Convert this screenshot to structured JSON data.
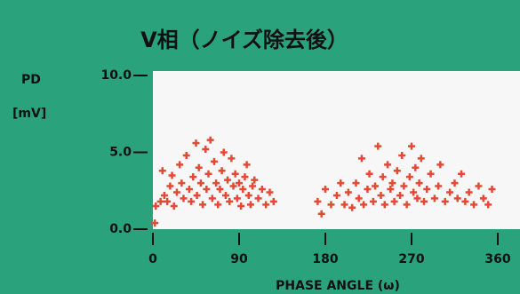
{
  "chart_data": {
    "type": "scatter",
    "title": "V相（ノイズ除去後）",
    "y_label_lines": [
      "PD",
      "[mV]"
    ],
    "x_label": "PHASE ANGLE (ω)",
    "xlim": [
      0,
      360
    ],
    "xticks": [
      0,
      90,
      180,
      270,
      360
    ],
    "ylim": [
      0,
      10
    ],
    "yticks": [
      {
        "value": 0,
        "label": "0.0"
      },
      {
        "value": 5,
        "label": "5.0"
      },
      {
        "value": 10,
        "label": "10.0"
      }
    ],
    "series": [
      {
        "color": "#e34a36",
        "x": [
          10,
          12,
          15,
          18,
          20,
          22,
          25,
          28,
          30,
          32,
          35,
          38,
          40,
          42,
          45,
          46,
          48,
          50,
          52,
          55,
          56,
          58,
          60,
          62,
          64,
          66,
          68,
          70,
          72,
          74,
          76,
          78,
          80,
          82,
          84,
          86,
          88,
          90,
          92,
          94,
          96,
          98,
          100,
          102,
          104,
          106,
          110,
          114,
          118,
          122,
          126,
          3,
          8,
          2,
          172,
          176,
          180,
          186,
          192,
          196,
          200,
          204,
          208,
          212,
          215,
          218,
          220,
          224,
          226,
          230,
          232,
          235,
          238,
          240,
          242,
          245,
          248,
          250,
          252,
          255,
          258,
          260,
          262,
          265,
          268,
          270,
          272,
          274,
          276,
          278,
          280,
          283,
          286,
          290,
          294,
          298,
          300,
          305,
          310,
          315,
          318,
          322,
          326,
          330,
          335,
          340,
          345,
          350,
          354
        ],
        "values": [
          3.8,
          2.2,
          1.8,
          2.8,
          3.5,
          1.5,
          2.4,
          4.2,
          3.0,
          2.0,
          4.8,
          2.6,
          1.8,
          3.4,
          5.6,
          2.2,
          4.0,
          3.0,
          1.6,
          5.2,
          2.6,
          3.6,
          5.8,
          2.0,
          4.4,
          3.0,
          1.6,
          2.6,
          3.8,
          5.0,
          2.2,
          3.2,
          1.8,
          4.6,
          2.8,
          3.6,
          2.0,
          3.0,
          1.5,
          2.6,
          3.4,
          4.2,
          2.2,
          1.6,
          2.8,
          3.2,
          2.0,
          2.6,
          1.6,
          2.4,
          1.8,
          1.5,
          1.8,
          0.4,
          1.8,
          1.0,
          2.6,
          1.6,
          2.2,
          3.0,
          1.6,
          2.4,
          1.4,
          3.0,
          2.0,
          4.6,
          1.6,
          2.6,
          3.6,
          1.8,
          2.8,
          5.4,
          2.2,
          3.4,
          1.6,
          4.2,
          2.6,
          3.0,
          1.8,
          3.8,
          2.2,
          4.8,
          2.8,
          1.6,
          3.4,
          5.4,
          2.4,
          4.0,
          2.0,
          3.0,
          4.6,
          1.8,
          2.6,
          3.6,
          2.0,
          2.8,
          4.2,
          1.8,
          2.4,
          3.0,
          2.0,
          3.6,
          1.8,
          2.4,
          1.6,
          2.8,
          2.0,
          1.6,
          2.6
        ]
      }
    ]
  }
}
